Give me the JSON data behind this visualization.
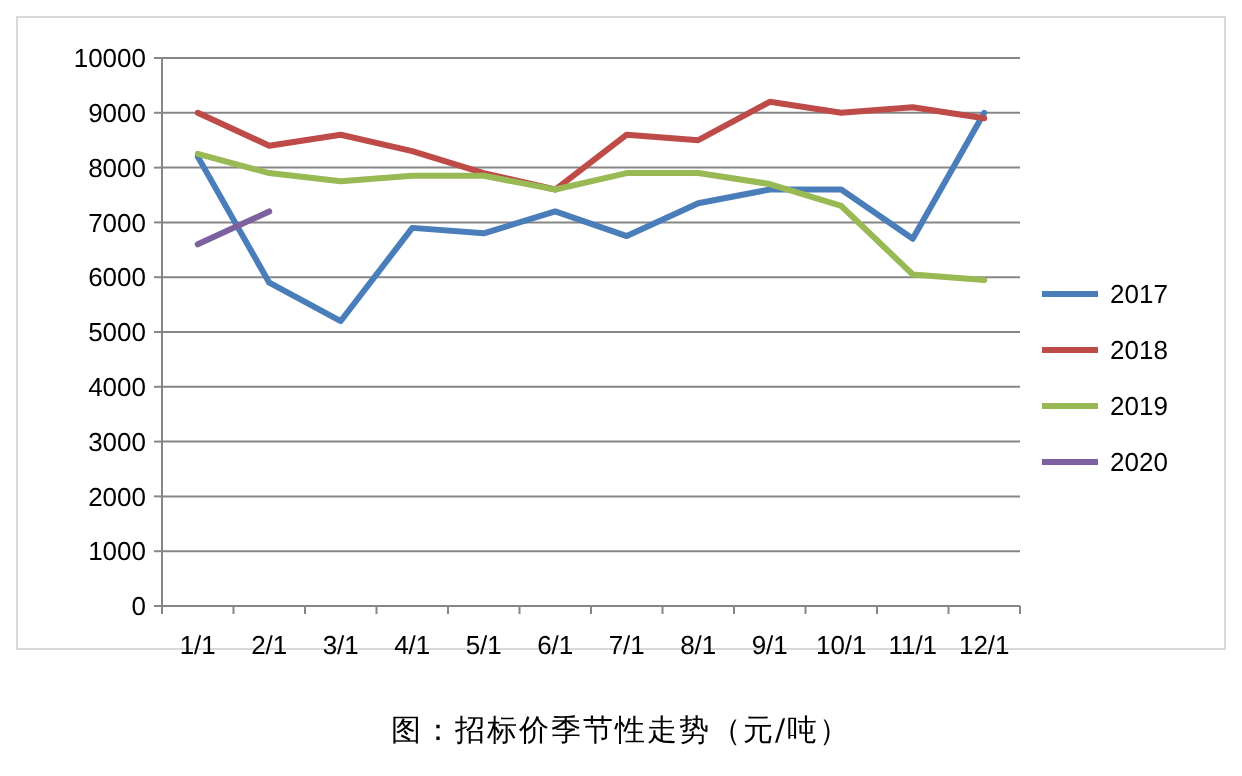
{
  "chart_data": {
    "type": "line",
    "categories": [
      "1/1",
      "2/1",
      "3/1",
      "4/1",
      "5/1",
      "6/1",
      "7/1",
      "8/1",
      "9/1",
      "10/1",
      "11/1",
      "12/1"
    ],
    "series": [
      {
        "name": "2017",
        "color": "#4a7ebb",
        "values": [
          8200,
          5900,
          5200,
          6900,
          6800,
          7200,
          6750,
          7350,
          7600,
          7600,
          6700,
          9000
        ]
      },
      {
        "name": "2018",
        "color": "#be4b48",
        "values": [
          9000,
          8400,
          8600,
          8300,
          7900,
          7600,
          8600,
          8500,
          9200,
          9000,
          9100,
          8900
        ]
      },
      {
        "name": "2019",
        "color": "#98b954",
        "values": [
          8250,
          7900,
          7750,
          7850,
          7850,
          7600,
          7900,
          7900,
          7700,
          7300,
          6050,
          5950
        ]
      },
      {
        "name": "2020",
        "color": "#7d60a0",
        "values": [
          6600,
          7200,
          null,
          null,
          null,
          null,
          null,
          null,
          null,
          null,
          null,
          null
        ]
      }
    ],
    "ylim": [
      0,
      10000
    ],
    "yticks": [
      0,
      1000,
      2000,
      3000,
      4000,
      5000,
      6000,
      7000,
      8000,
      9000,
      10000
    ],
    "grid": "y",
    "legend": "right",
    "marker": "none",
    "line_style": "solid",
    "annotations": [
      "图：招标价季节性走势（元/吨）"
    ]
  }
}
